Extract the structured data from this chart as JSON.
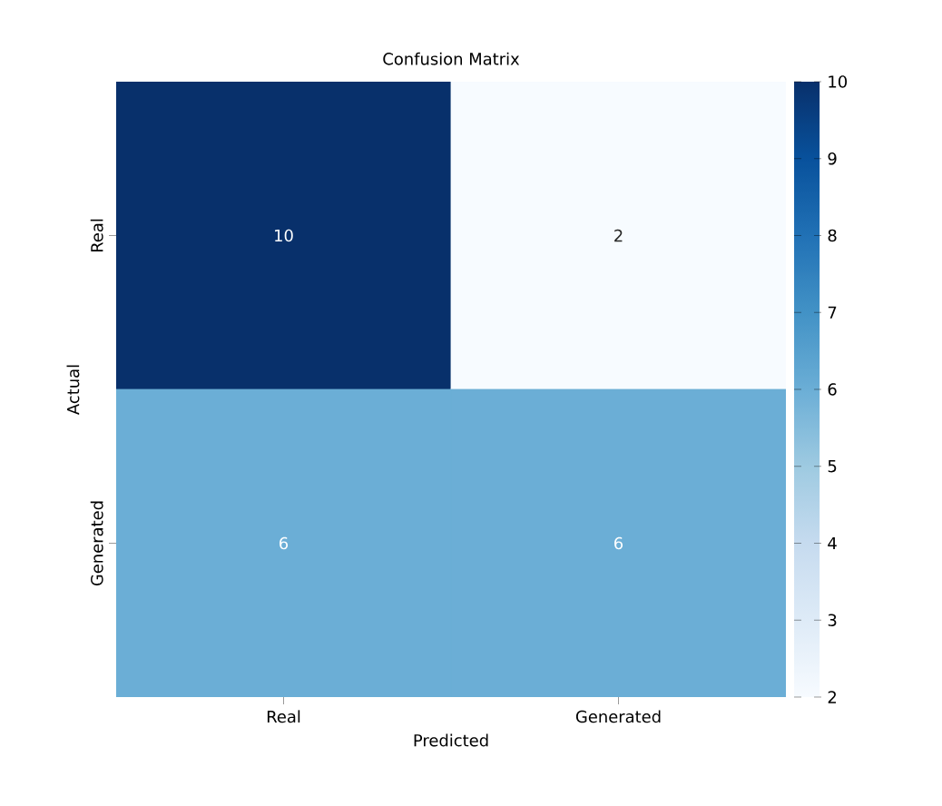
{
  "chart_data": {
    "type": "heatmap",
    "title": "Confusion Matrix",
    "xlabel": "Predicted",
    "ylabel": "Actual",
    "categories": [
      "Real",
      "Generated"
    ],
    "y_categories": [
      "Real",
      "Generated"
    ],
    "cells": [
      [
        10,
        2
      ],
      [
        6,
        6
      ]
    ],
    "data_labels": true,
    "clim": [
      2,
      10
    ],
    "cticks": [
      2,
      3,
      4,
      5,
      6,
      7,
      8,
      9,
      10
    ]
  }
}
